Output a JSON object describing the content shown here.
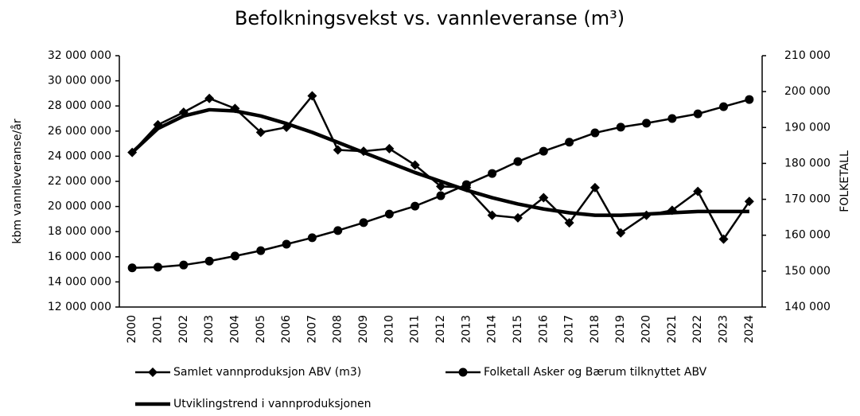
{
  "chart_data": {
    "type": "line",
    "title": "Befolkningsvekst vs. vannleveranse (m³)",
    "y_label": "kbm vannleveranse/år",
    "y2_label": "FOLKETALL",
    "categories": [
      "2000",
      "2001",
      "2002",
      "2003",
      "2004",
      "2005",
      "2006",
      "2007",
      "2008",
      "2009",
      "2010",
      "2011",
      "2012",
      "2013",
      "2014",
      "2015",
      "2016",
      "2017",
      "2018",
      "2019",
      "2020",
      "2021",
      "2022",
      "2023",
      "2024"
    ],
    "series": [
      {
        "name": "Samlet vannproduksjon ABV (m3)",
        "color": "#000000",
        "marker": "diamond",
        "line_width": 2.5,
        "values": [
          24300000,
          26500000,
          27500000,
          28600000,
          27800000,
          25900000,
          26300000,
          28800000,
          24500000,
          24400000,
          24600000,
          23300000,
          21600000,
          21500000,
          19300000,
          19100000,
          20700000,
          18700000,
          21500000,
          17900000,
          19300000,
          19700000,
          21200000,
          17400000,
          20400000
        ]
      },
      {
        "name": "Folketall Asker og Bærum tilknyttet ABV",
        "color": "#000000",
        "marker": "circle",
        "line_width": 2.5,
        "axis": "y2",
        "values": [
          150900,
          151100,
          151700,
          152800,
          154200,
          155700,
          157500,
          159300,
          161300,
          163500,
          165900,
          168100,
          171000,
          174100,
          177200,
          180500,
          183400,
          185900,
          188500,
          190100,
          191200,
          192500,
          193800,
          195800,
          197800
        ]
      },
      {
        "name": "Utviklingstrend i vannproduksjonen",
        "color": "#000000",
        "marker": "none",
        "line_width": 4.5,
        "values": [
          24300000,
          26200000,
          27200000,
          27700000,
          27600000,
          27200000,
          26600000,
          25900000,
          25100000,
          24300000,
          23500000,
          22700000,
          22000000,
          21300000,
          20700000,
          20200000,
          19800000,
          19500000,
          19300000,
          19300000,
          19400000,
          19500000,
          19600000,
          19600000,
          19600000
        ]
      }
    ],
    "ylim": [
      12000000,
      32000000
    ],
    "yticks": [
      {
        "value": 12000000,
        "label": "12 000 000"
      },
      {
        "value": 14000000,
        "label": "14 000 000"
      },
      {
        "value": 16000000,
        "label": "16 000 000"
      },
      {
        "value": 18000000,
        "label": "18 000 000"
      },
      {
        "value": 20000000,
        "label": "20 000 000"
      },
      {
        "value": 22000000,
        "label": "22 000 000"
      },
      {
        "value": 24000000,
        "label": "24 000 000"
      },
      {
        "value": 26000000,
        "label": "26 000 000"
      },
      {
        "value": 28000000,
        "label": "28 000 000"
      },
      {
        "value": 30000000,
        "label": "30 000 000"
      },
      {
        "value": 32000000,
        "label": "32 000 000"
      }
    ],
    "y2lim": [
      140000,
      210000
    ],
    "y2ticks": [
      {
        "value": 140000,
        "label": "140 000"
      },
      {
        "value": 150000,
        "label": "150 000"
      },
      {
        "value": 160000,
        "label": "160 000"
      },
      {
        "value": 170000,
        "label": "170 000"
      },
      {
        "value": 180000,
        "label": "180 000"
      },
      {
        "value": 190000,
        "label": "190 000"
      },
      {
        "value": 200000,
        "label": "200 000"
      },
      {
        "value": 210000,
        "label": "210 000"
      }
    ],
    "grid": false,
    "legend": "bottom"
  }
}
